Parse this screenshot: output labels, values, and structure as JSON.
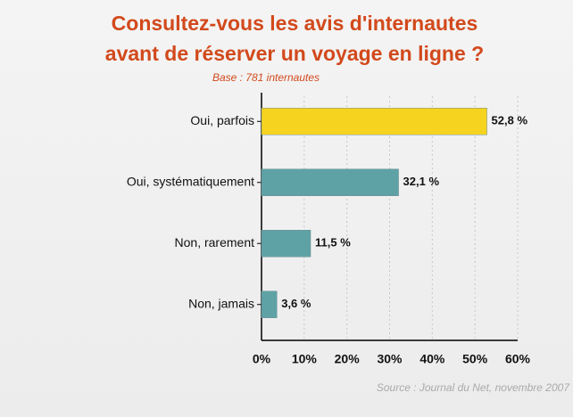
{
  "chart_data": {
    "type": "hbar",
    "title": [
      "Consultez-vous les avis d'internautes",
      "avant de réserver un voyage en ligne ?"
    ],
    "subtitle": "Base : 781 internautes",
    "categories": [
      "Oui, parfois",
      "Oui, systématiquement",
      "Non, rarement",
      "Non, jamais"
    ],
    "values": [
      52.8,
      32.1,
      11.5,
      3.6
    ],
    "value_labels": [
      "52,8 %",
      "32,1 %",
      "11,5 %",
      "3,6 %"
    ],
    "colors": [
      "#f6d31f",
      "#5fa2a6",
      "#5fa2a6",
      "#5fa2a6"
    ],
    "xlim": [
      0,
      60
    ],
    "xticks": [
      {
        "value": 0,
        "label": "0%"
      },
      {
        "value": 10,
        "label": "10%"
      },
      {
        "value": 20,
        "label": "20%"
      },
      {
        "value": 30,
        "label": "30%"
      },
      {
        "value": 40,
        "label": "40%"
      },
      {
        "value": 50,
        "label": "50%"
      },
      {
        "value": 60,
        "label": "60%"
      }
    ],
    "grid": true,
    "source": "Source : Journal du Net, novembre 2007"
  }
}
